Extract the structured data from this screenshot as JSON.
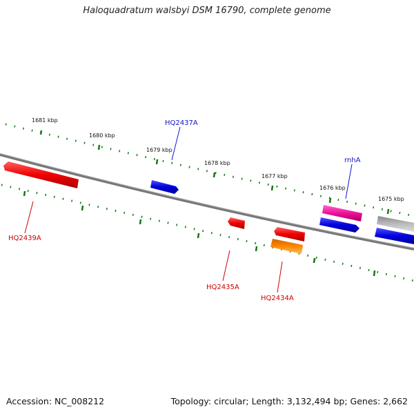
{
  "title": "Haloquadratum walsbyi DSM 16790, complete genome",
  "footer": {
    "accession": "Accession: NC_008212",
    "summary": "Topology: circular; Length: 3,132,494 bp; Genes: 2,662"
  },
  "colors": {
    "backbone": "#808080",
    "tick": "#117711",
    "gene_red": "#ee0000",
    "gene_blue": "#0000dd",
    "gene_pink": "#ee1199",
    "gene_orange": "#ff8800",
    "gene_gray": "#bbbbbb",
    "label_blue": "#1111cc",
    "label_red": "#cc0000"
  },
  "kbp_labels": [
    "1681 kbp",
    "1680 kbp",
    "1679 kbp",
    "1678 kbp",
    "1677 kbp",
    "1676 kbp",
    "1675 kbp"
  ],
  "gene_labels": [
    "HQ2437A",
    "rnhA",
    "HQ2439A",
    "HQ2435A",
    "HQ2434A"
  ]
}
